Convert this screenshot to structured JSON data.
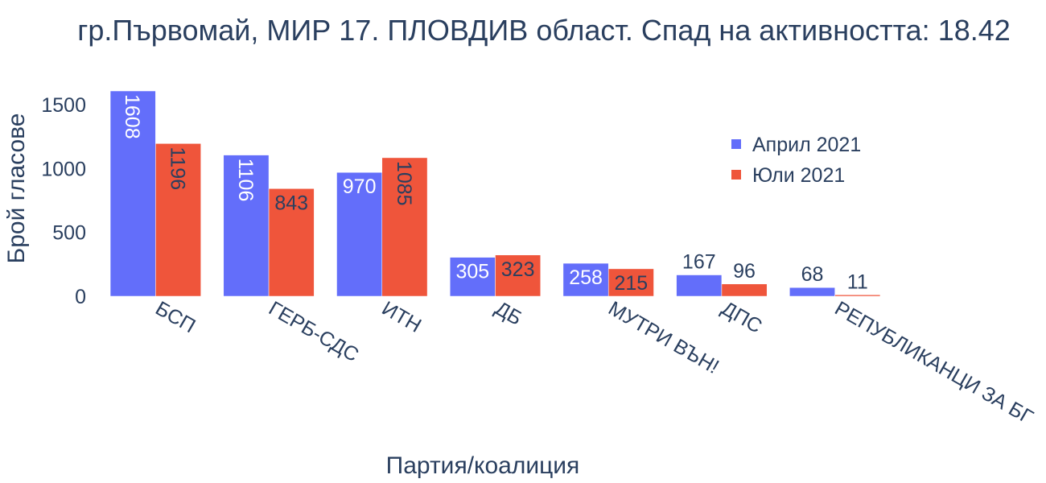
{
  "chart_data": {
    "type": "bar",
    "title": "гр.Първомай, МИР 17. ПЛОВДИВ област. Спад на активността: 18.42",
    "xlabel": "Партия/коалиция",
    "ylabel": "Брой гласове",
    "categories": [
      "БСП",
      "ГЕРБ-СДС",
      "ИТН",
      "ДБ",
      "МУТРИ ВЪН!",
      "ДПС",
      "РЕПУБЛИКАНЦИ ЗА БГ"
    ],
    "series": [
      {
        "name": "Април 2021",
        "color": "#636efa",
        "values": [
          1608,
          1106,
          970,
          305,
          258,
          167,
          68
        ]
      },
      {
        "name": "Юли 2021",
        "color": "#ef553b",
        "values": [
          1196,
          843,
          1085,
          323,
          215,
          96,
          11
        ]
      }
    ],
    "yticks": [
      0,
      500,
      1000,
      1500
    ],
    "ylim": [
      0,
      1608
    ],
    "grid": false,
    "legend_position": "top-right"
  }
}
